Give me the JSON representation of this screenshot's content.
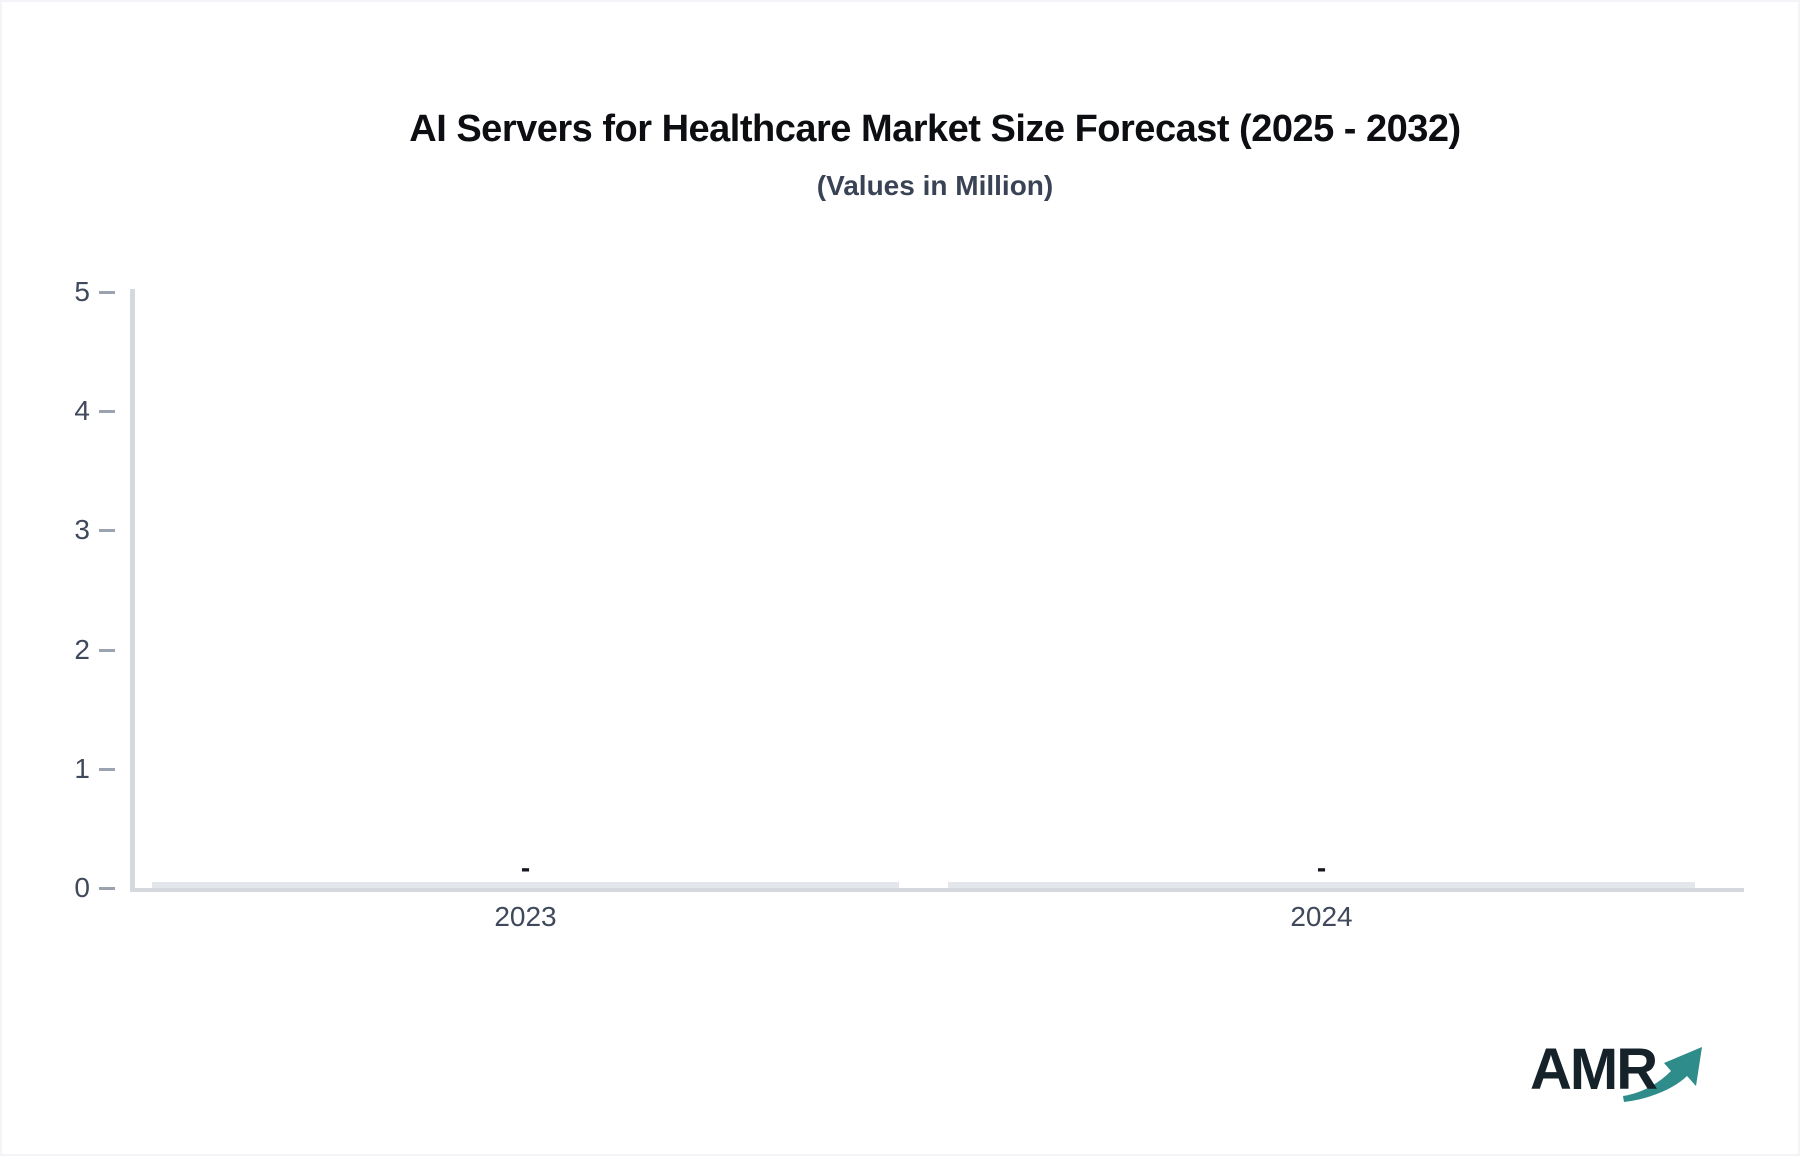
{
  "chart_data": {
    "type": "bar",
    "title": "AI Servers for Healthcare Market Size Forecast (2025 - 2032)",
    "subtitle": "(Values in Million)",
    "categories": [
      "2023",
      "2024"
    ],
    "values": [
      0,
      0
    ],
    "data_labels": [
      "-",
      "-"
    ],
    "xlabel": "",
    "ylabel": "",
    "ylim": [
      0,
      5
    ],
    "yticks": [
      0,
      1,
      2,
      3,
      4,
      5
    ],
    "grid": false,
    "legend": "none",
    "colors": {
      "title": "#0c0e12",
      "subtitle": "#3a4356",
      "axis": "#d5d8dd",
      "tick_dash": "#9aa3af",
      "tick_label": "#40495c",
      "bar": "#e3e6ea",
      "data_label": "#15181e"
    }
  },
  "branding": {
    "logo_text": "AMR",
    "logo_text_color": "#16222a",
    "arrow_color": "#2e8c8a"
  }
}
